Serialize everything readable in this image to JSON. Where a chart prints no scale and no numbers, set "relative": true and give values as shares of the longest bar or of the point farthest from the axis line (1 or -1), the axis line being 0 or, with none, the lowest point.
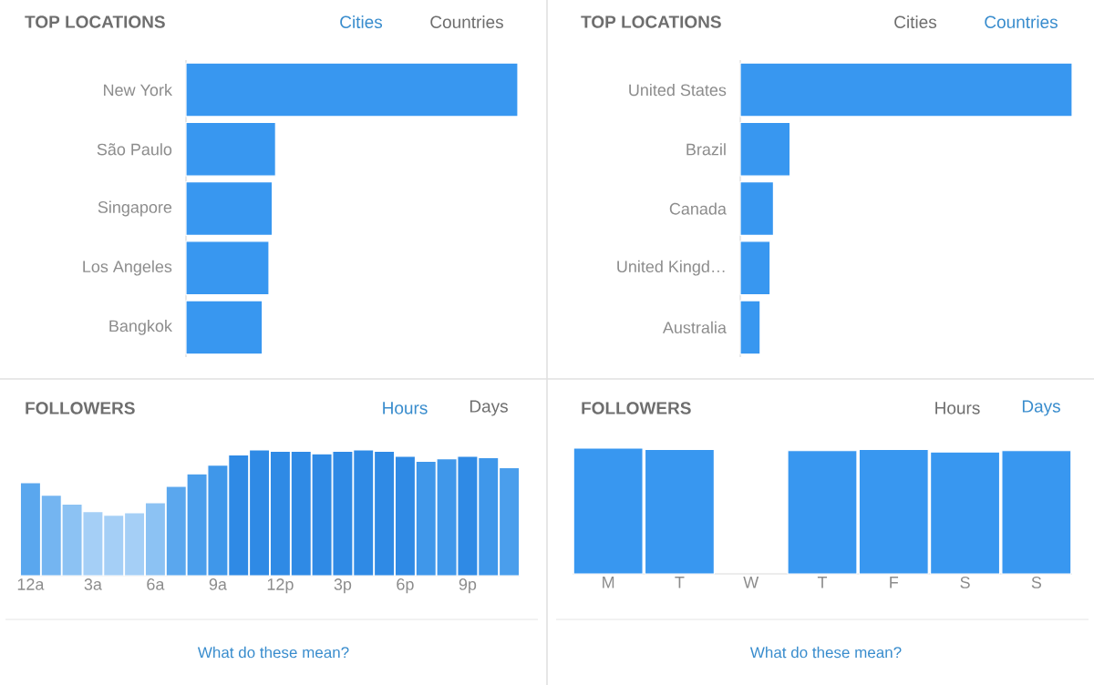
{
  "chart_data": [
    {
      "type": "bar",
      "orientation": "horizontal",
      "relative": true,
      "title": "TOP LOCATIONS",
      "annotations": [
        "Cities",
        "Countries"
      ],
      "categories": [
        "New York",
        "São Paulo",
        "Singapore",
        "Los Angeles",
        "Bangkok"
      ],
      "values": [
        1,
        0.27,
        0.26,
        0.25,
        0.23
      ],
      "color": "#3897f0"
    },
    {
      "type": "bar",
      "orientation": "horizontal",
      "relative": true,
      "title": "TOP LOCATIONS",
      "annotations": [
        "Cities",
        "Countries"
      ],
      "categories": [
        "United States",
        "Brazil",
        "Canada",
        "United Kingd…",
        "Australia"
      ],
      "values": [
        1,
        0.15,
        0.1,
        0.09,
        0.06
      ],
      "color": "#3897f0"
    },
    {
      "type": "bar",
      "relative": true,
      "title": "FOLLOWERS",
      "annotations": [
        "Hours",
        "Days",
        "What do these mean?"
      ],
      "categories": [
        "12a",
        null,
        null,
        "3a",
        null,
        null,
        "6a",
        null,
        null,
        "9a",
        null,
        null,
        "12p",
        null,
        null,
        "3p",
        null,
        null,
        "6p",
        null,
        null,
        "9p",
        null,
        null
      ],
      "values": [
        0.74,
        0.64,
        0.57,
        0.51,
        0.48,
        0.5,
        0.58,
        0.71,
        0.81,
        0.88,
        0.96,
        1,
        0.99,
        0.99,
        0.97,
        0.99,
        1,
        0.99,
        0.95,
        0.91,
        0.93,
        0.95,
        0.94,
        0.86
      ],
      "colors": [
        "#5aa7ee",
        "#74b5f1",
        "#8cc2f3",
        "#a5cff6",
        "#a5cff6",
        "#a5cff6",
        "#8cc2f3",
        "#5aa7ee",
        "#4a9eec",
        "#3f97ea",
        "#2f8ae5",
        "#2f8ae5",
        "#2f8ae5",
        "#2f8ae5",
        "#2f8ae5",
        "#2f8ae5",
        "#2f8ae5",
        "#2f8ae5",
        "#2f8ae5",
        "#3f97ea",
        "#3f97ea",
        "#2f8ae5",
        "#3f97ea",
        "#4a9eec"
      ]
    },
    {
      "type": "bar",
      "relative": true,
      "title": "FOLLOWERS",
      "annotations": [
        "Hours",
        "Days",
        "What do these mean?"
      ],
      "categories": [
        "M",
        "T",
        "W",
        "T",
        "F",
        "S",
        "S"
      ],
      "values": [
        1,
        0.99,
        null,
        0.98,
        0.99,
        0.97,
        0.98
      ],
      "color": "#3897f0"
    }
  ]
}
